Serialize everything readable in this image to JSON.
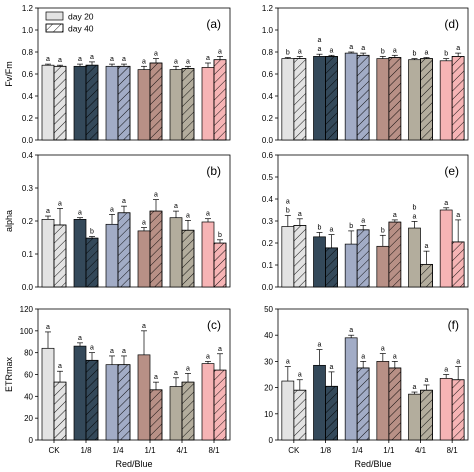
{
  "colors": {
    "CK": "#e3e3e3",
    "1/8": "#34495a",
    "1/4": "#a2acc6",
    "1/1": "#b89086",
    "4/1": "#b3ad9d",
    "8/1": "#f6b4b5"
  },
  "legend": {
    "day20": "day 20",
    "day40": "day 40"
  },
  "chart_data": [
    {
      "type": "bar",
      "panel": "(a)",
      "ylabel": "Fv/Fm",
      "xlabel": "",
      "ylim": [
        0,
        1.2
      ],
      "yticks": [
        "0.0",
        "0.2",
        "0.4",
        "0.6",
        "0.8",
        "1.0",
        "1.2"
      ],
      "categories": [
        "CK",
        "1/8",
        "1/4",
        "1/1",
        "4/1",
        "8/1"
      ],
      "series": [
        {
          "name": "day 20",
          "values": [
            0.68,
            0.67,
            0.67,
            0.64,
            0.64,
            0.66
          ],
          "errors": [
            0.01,
            0.02,
            0.02,
            0.03,
            0.03,
            0.04
          ],
          "letters": [
            "a",
            "a",
            "a",
            "a",
            "a",
            "a"
          ]
        },
        {
          "name": "day 40",
          "values": [
            0.67,
            0.68,
            0.67,
            0.7,
            0.65,
            0.73
          ],
          "errors": [
            0.01,
            0.03,
            0.02,
            0.04,
            0.02,
            0.03
          ],
          "letters": [
            "a",
            "a",
            "a",
            "a",
            "a",
            "a"
          ]
        }
      ]
    },
    {
      "type": "bar",
      "panel": "(d)",
      "ylabel": "",
      "xlabel": "",
      "ylim": [
        0,
        1.2
      ],
      "yticks": [
        "0.0",
        "0.2",
        "0.4",
        "0.6",
        "0.8",
        "1.0",
        "1.2"
      ],
      "categories": [
        "CK",
        "1/8",
        "1/4",
        "1/1",
        "4/1",
        "8/1"
      ],
      "series": [
        {
          "name": "day 20",
          "values": [
            0.74,
            0.76,
            0.79,
            0.74,
            0.73,
            0.72
          ],
          "errors": [
            0.01,
            0.02,
            0.01,
            0.02,
            0.01,
            0.02
          ],
          "letters": [
            "b",
            "a",
            "a",
            "b",
            "b",
            "b"
          ]
        },
        {
          "name": "day 40",
          "values": [
            0.74,
            0.76,
            0.77,
            0.75,
            0.74,
            0.76
          ],
          "errors": [
            0.02,
            0.01,
            0.02,
            0.02,
            0.01,
            0.03
          ],
          "letters": [
            "a",
            "a",
            "a",
            "a",
            "a",
            "a"
          ]
        }
      ],
      "extra_letters": [
        [
          "",
          ""
        ],
        [
          "a",
          ""
        ],
        [
          "",
          ""
        ],
        [
          "",
          ""
        ],
        [
          "",
          ""
        ],
        [
          "",
          ""
        ]
      ]
    },
    {
      "type": "bar",
      "panel": "(b)",
      "ylabel": "alpha",
      "xlabel": "",
      "ylim": [
        0,
        0.4
      ],
      "yticks": [
        "0.0",
        "0.1",
        "0.2",
        "0.3",
        "0.4"
      ],
      "categories": [
        "CK",
        "1/8",
        "1/4",
        "1/1",
        "4/1",
        "8/1"
      ],
      "series": [
        {
          "name": "day 20",
          "values": [
            0.205,
            0.205,
            0.19,
            0.17,
            0.21,
            0.197
          ],
          "errors": [
            0.01,
            0.005,
            0.03,
            0.01,
            0.02,
            0.01
          ],
          "letters": [
            "a",
            "a",
            "a",
            "a",
            "a",
            "a"
          ]
        },
        {
          "name": "day 40",
          "values": [
            0.188,
            0.148,
            0.225,
            0.23,
            0.172,
            0.133
          ],
          "errors": [
            0.05,
            0.005,
            0.02,
            0.035,
            0.03,
            0.01
          ],
          "letters": [
            "a",
            "b",
            "a",
            "a",
            "a",
            "b"
          ]
        }
      ]
    },
    {
      "type": "bar",
      "panel": "(e)",
      "ylabel": "",
      "xlabel": "",
      "ylim": [
        0,
        0.6
      ],
      "yticks": [
        "0.0",
        "0.1",
        "0.2",
        "0.3",
        "0.4",
        "0.5",
        "0.6"
      ],
      "categories": [
        "CK",
        "1/8",
        "1/4",
        "1/1",
        "4/1",
        "8/1"
      ],
      "series": [
        {
          "name": "day 20",
          "values": [
            0.275,
            0.228,
            0.195,
            0.185,
            0.268,
            0.35
          ],
          "errors": [
            0.05,
            0.02,
            0.06,
            0.05,
            0.03,
            0.01
          ],
          "letters": [
            "b",
            "b",
            "b",
            "b",
            "a",
            "a"
          ]
        },
        {
          "name": "day 40",
          "values": [
            0.28,
            0.178,
            0.26,
            0.295,
            0.103,
            0.205
          ],
          "errors": [
            0.03,
            0.06,
            0.02,
            0.01,
            0.06,
            0.1
          ],
          "letters": [
            "a",
            "a",
            "a",
            "a",
            "a",
            "a"
          ]
        }
      ],
      "extra_letters": [
        [
          "a",
          ""
        ],
        [
          "",
          ""
        ],
        [
          "",
          ""
        ],
        [
          "",
          ""
        ],
        [
          "b",
          ""
        ],
        [
          "",
          ""
        ]
      ]
    },
    {
      "type": "bar",
      "panel": "(c)",
      "ylabel": "ETRmax",
      "xlabel": "Red/Blue",
      "ylim": [
        0,
        120
      ],
      "yticks": [
        "0",
        "20",
        "40",
        "60",
        "80",
        "100",
        "120"
      ],
      "categories": [
        "CK",
        "1/8",
        "1/4",
        "1/1",
        "4/1",
        "8/1"
      ],
      "series": [
        {
          "name": "day 20",
          "values": [
            84,
            86,
            69,
            78,
            49,
            70
          ],
          "errors": [
            15,
            3,
            8,
            22,
            8,
            2
          ],
          "letters": [
            "a",
            "a",
            "a",
            "a",
            "a",
            "a"
          ]
        },
        {
          "name": "day 40",
          "values": [
            53,
            73,
            69,
            46,
            53,
            64
          ],
          "errors": [
            10,
            7,
            8,
            7,
            8,
            15
          ],
          "letters": [
            "a",
            "a",
            "a",
            "a",
            "a",
            "a"
          ]
        }
      ]
    },
    {
      "type": "bar",
      "panel": "(f)",
      "ylabel": "",
      "xlabel": "Red/Blue",
      "ylim": [
        0,
        50
      ],
      "yticks": [
        "0",
        "10",
        "20",
        "30",
        "40",
        "50"
      ],
      "categories": [
        "CK",
        "1/8",
        "1/4",
        "1/1",
        "4/1",
        "8/1"
      ],
      "series": [
        {
          "name": "day 20",
          "values": [
            22.5,
            28.5,
            39.0,
            30.0,
            17.5,
            23.5
          ],
          "errors": [
            5.5,
            6.0,
            1.0,
            3.0,
            0.8,
            1.5
          ],
          "letters": [
            "a",
            "a",
            "a",
            "a",
            "a",
            "a"
          ]
        },
        {
          "name": "day 40",
          "values": [
            19.0,
            20.5,
            27.5,
            27.5,
            19.0,
            23.0
          ],
          "errors": [
            4.0,
            5.5,
            2.5,
            2.5,
            2.0,
            5.0
          ],
          "letters": [
            "a",
            "a",
            "a",
            "a",
            "a",
            "a"
          ]
        }
      ]
    }
  ]
}
